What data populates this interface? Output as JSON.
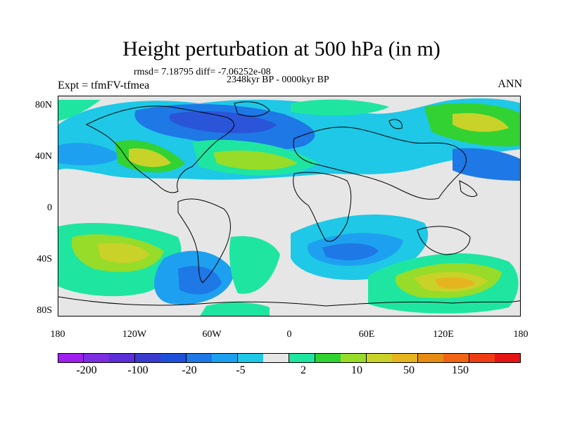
{
  "title": "Height perturbation at 500 hPa (in m)",
  "stats": "rmsd= 7.18795 diff= -7.06252e-08",
  "period": "2348kyr BP - 0000kyr BP",
  "experiment": "Expt = tfmFV-tfmea",
  "season": "ANN",
  "lat_labels": [
    "80N",
    "40N",
    "0",
    "40S",
    "80S"
  ],
  "lon_labels": [
    "180",
    "120W",
    "60W",
    "0",
    "60E",
    "120E",
    "180"
  ],
  "colorbar": {
    "colors": [
      "#a020f0",
      "#7b2fe0",
      "#5a2fd8",
      "#3a3ad0",
      "#1f50dc",
      "#1e78e6",
      "#1ea0f0",
      "#1ec8e6",
      "#e6e6e6",
      "#1ee6a0",
      "#32d232",
      "#96dc28",
      "#c8d228",
      "#e6b41e",
      "#e68c14",
      "#f06414",
      "#f03c14",
      "#e61414"
    ],
    "labels": [
      "-200",
      "-100",
      "-20",
      "-5",
      "2",
      "10",
      "50",
      "150"
    ]
  },
  "field_colors": {
    "blue_dark": "#2a55d8",
    "blue": "#1e78e6",
    "blue_light": "#1ea0f0",
    "cyan": "#1ec8e6",
    "neutral": "#e6e6e6",
    "teal": "#1ee6a0",
    "green": "#32d232",
    "yellow_green": "#96dc28",
    "olive": "#c8d228",
    "gold": "#e6b41e"
  }
}
